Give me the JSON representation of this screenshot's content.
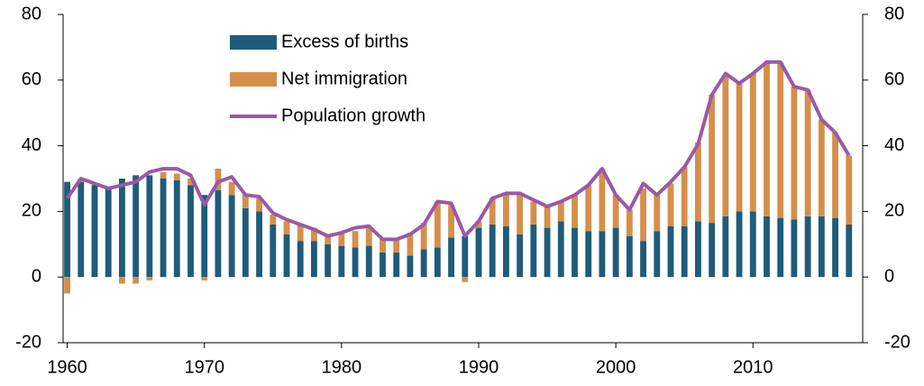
{
  "chart_data": {
    "type": "bar",
    "stacked": true,
    "x": [
      1960,
      1961,
      1962,
      1963,
      1964,
      1965,
      1966,
      1967,
      1968,
      1969,
      1970,
      1971,
      1972,
      1973,
      1974,
      1975,
      1976,
      1977,
      1978,
      1979,
      1980,
      1981,
      1982,
      1983,
      1984,
      1985,
      1986,
      1987,
      1988,
      1989,
      1990,
      1991,
      1992,
      1993,
      1994,
      1995,
      1996,
      1997,
      1998,
      1999,
      2000,
      2001,
      2002,
      2003,
      2004,
      2005,
      2006,
      2007,
      2008,
      2009,
      2010,
      2011,
      2012,
      2013,
      2014,
      2015,
      2016,
      2017
    ],
    "series": [
      {
        "name": "Excess of births",
        "color": "#1f5c7a",
        "type": "bar",
        "values": [
          29,
          29,
          28,
          27,
          30,
          31,
          31,
          30,
          29.5,
          28,
          25,
          26.5,
          25,
          21,
          20,
          16,
          13,
          11,
          11,
          10,
          9.5,
          9,
          9.5,
          7.5,
          7.5,
          6.5,
          8.5,
          9,
          12,
          12.5,
          15,
          16,
          15.5,
          13,
          16,
          15,
          17,
          15,
          14,
          14,
          15,
          12.5,
          11,
          14,
          15.5,
          15.5,
          17,
          16.5,
          18.5,
          20,
          20,
          18.5,
          18,
          17.5,
          18.5,
          18.5,
          18,
          16
        ]
      },
      {
        "name": "Net immigration",
        "color": "#d4904a",
        "type": "bar",
        "values": [
          -5,
          1,
          0.5,
          0,
          -2,
          -2,
          -1,
          2,
          2,
          2,
          -1,
          6.5,
          4,
          4,
          4,
          3,
          4,
          5,
          4,
          3,
          4,
          5,
          6,
          4,
          4,
          7,
          8,
          14,
          10,
          -1.5,
          2,
          8,
          10,
          12,
          7,
          6.5,
          6,
          10,
          14,
          19,
          10,
          8,
          16,
          11,
          13,
          18,
          24,
          39,
          43,
          39,
          42,
          47,
          47.5,
          40.5,
          38.5,
          29.5,
          26,
          21
        ]
      },
      {
        "name": "Population growth",
        "color": "#9b59a6",
        "type": "line",
        "values": [
          24,
          30,
          28.5,
          27,
          28,
          29,
          32,
          33,
          33,
          31,
          22,
          29,
          30.5,
          25,
          24.5,
          19.5,
          17.5,
          16,
          14.5,
          12.5,
          13.5,
          15,
          15.5,
          11.5,
          11.5,
          13,
          16,
          23,
          22.5,
          12.5,
          17,
          24,
          25.5,
          25.5,
          23.5,
          21.5,
          23,
          25,
          28,
          33,
          25,
          20.5,
          28.5,
          25,
          29,
          33.5,
          40.5,
          55.5,
          62,
          59,
          62,
          65.5,
          65.5,
          58,
          57,
          48,
          44,
          37
        ]
      }
    ],
    "xlim": [
      1959.7,
      2018
    ],
    "xticks": [
      1960,
      1970,
      1980,
      1990,
      2000,
      2010
    ],
    "ylim": [
      -20,
      80
    ],
    "yticks": [
      -20,
      0,
      20,
      40,
      60,
      80
    ],
    "y2lim": [
      -20,
      80
    ],
    "y2ticks": [
      -20,
      0,
      20,
      40,
      60,
      80
    ]
  }
}
